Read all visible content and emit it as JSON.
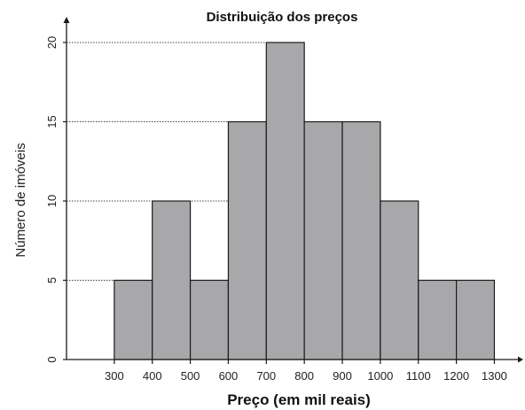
{
  "chart_data": {
    "type": "bar",
    "title": "Distribuição dos preços",
    "xlabel": "Preço (em mil reais)",
    "ylabel": "Número de imóveis",
    "x_ticks": [
      "300",
      "400",
      "500",
      "600",
      "700",
      "800",
      "900",
      "1000",
      "1100",
      "1200",
      "1300"
    ],
    "y_ticks": [
      "0",
      "5",
      "10",
      "15",
      "20"
    ],
    "bins": [
      {
        "from": 300,
        "to": 400,
        "value": 5
      },
      {
        "from": 400,
        "to": 500,
        "value": 10
      },
      {
        "from": 500,
        "to": 600,
        "value": 5
      },
      {
        "from": 600,
        "to": 700,
        "value": 15
      },
      {
        "from": 700,
        "to": 800,
        "value": 20
      },
      {
        "from": 800,
        "to": 900,
        "value": 15
      },
      {
        "from": 900,
        "to": 1000,
        "value": 15
      },
      {
        "from": 1000,
        "to": 1100,
        "value": 10
      },
      {
        "from": 1100,
        "to": 1200,
        "value": 5
      },
      {
        "from": 1200,
        "to": 1300,
        "value": 5
      }
    ],
    "xlim": [
      200,
      1300
    ],
    "ylim": [
      0,
      20
    ],
    "bar_color": "#a8a8aa",
    "reference_lines": "dotted"
  }
}
